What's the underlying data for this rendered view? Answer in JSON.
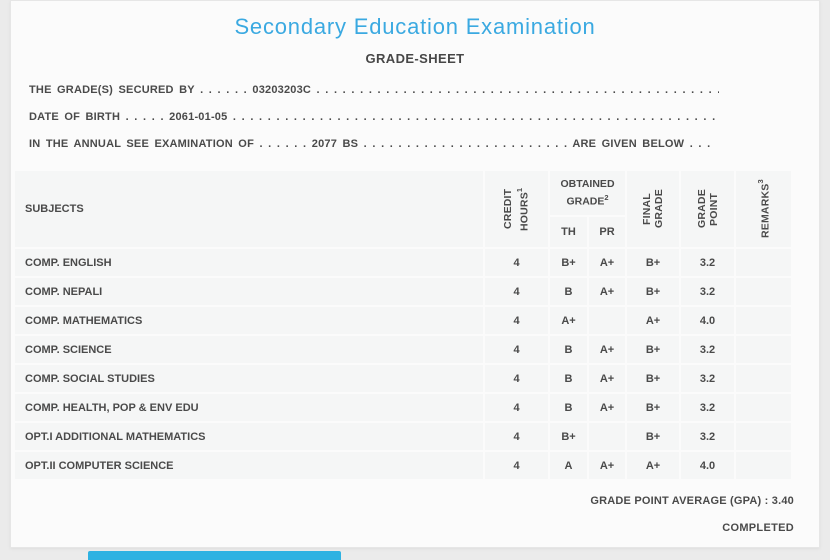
{
  "header": {
    "title": "Secondary Education Examination",
    "subtitle": "GRADE-SHEET"
  },
  "info": {
    "line1": {
      "label": "THE GRADE(S) SECURED BY",
      "leader": ". . . . . .",
      "value": "03203203C",
      "trailer": ". . . . . . . . . . . . . . . . . . . . . . . . . . . . . . . . . . . . . . . . . . . . . . . ."
    },
    "line2": {
      "label": "DATE OF BIRTH",
      "leader": ". . . . .",
      "value": "2061-01-05",
      "trailer": ". . . . . . . . . . . . . . . . . . . . . . . . . . . . . . . . . . . . . . . . . . . . . . . . . . . . . . . ."
    },
    "line3": {
      "label": "IN THE ANNUAL SEE EXAMINATION OF",
      "leader": ". . . . . .",
      "value": "2077 BS",
      "mid_dots": ". . . . . . . . . . . . . . . . . . . . . . . .",
      "suffix": "ARE GIVEN BELOW . . ."
    }
  },
  "table": {
    "headers": {
      "subjects": "SUBJECTS",
      "credit_hours": "CREDIT HOURS",
      "credit_hours_sup": "1",
      "obtained_grade": "OBTAINED GRADE",
      "obtained_grade_sup": "2",
      "th": "TH",
      "pr": "PR",
      "final_grade": "FINAL GRADE",
      "grade_point": "GRADE POINT",
      "remarks": "REMARKS",
      "remarks_sup": "3"
    },
    "rows": [
      {
        "subject": "COMP. ENGLISH",
        "credit": "4",
        "th": "B+",
        "pr": "A+",
        "final": "B+",
        "gp": "3.2",
        "remarks": ""
      },
      {
        "subject": "COMP. NEPALI",
        "credit": "4",
        "th": "B",
        "pr": "A+",
        "final": "B+",
        "gp": "3.2",
        "remarks": ""
      },
      {
        "subject": "COMP. MATHEMATICS",
        "credit": "4",
        "th": "A+",
        "pr": "",
        "final": "A+",
        "gp": "4.0",
        "remarks": ""
      },
      {
        "subject": "COMP. SCIENCE",
        "credit": "4",
        "th": "B",
        "pr": "A+",
        "final": "B+",
        "gp": "3.2",
        "remarks": ""
      },
      {
        "subject": "COMP. SOCIAL STUDIES",
        "credit": "4",
        "th": "B",
        "pr": "A+",
        "final": "B+",
        "gp": "3.2",
        "remarks": ""
      },
      {
        "subject": "COMP. HEALTH, POP & ENV EDU",
        "credit": "4",
        "th": "B",
        "pr": "A+",
        "final": "B+",
        "gp": "3.2",
        "remarks": ""
      },
      {
        "subject": "OPT.I ADDITIONAL MATHEMATICS",
        "credit": "4",
        "th": "B+",
        "pr": "",
        "final": "B+",
        "gp": "3.2",
        "remarks": ""
      },
      {
        "subject": "OPT.II COMPUTER SCIENCE",
        "credit": "4",
        "th": "A",
        "pr": "A+",
        "final": "A+",
        "gp": "4.0",
        "remarks": ""
      }
    ]
  },
  "summary": {
    "gpa_label": "GRADE POINT AVERAGE (GPA) :",
    "gpa_value": "3.40",
    "status": "COMPLETED"
  },
  "colors": {
    "title_blue": "#3aa9e1",
    "accent_bar_cyan": "#2eb2e2",
    "text": "#4a4a4a",
    "cell_bg": "#f5f6f6"
  }
}
